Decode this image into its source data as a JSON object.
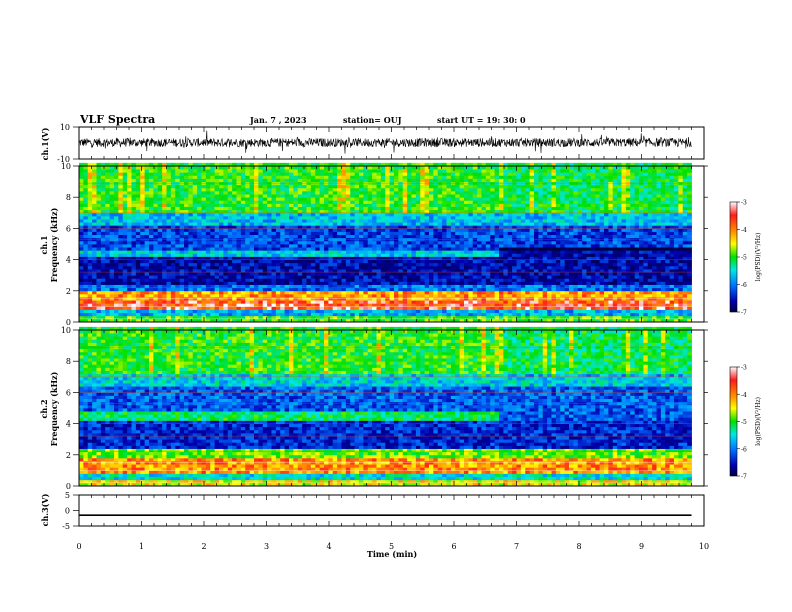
{
  "header": {
    "title": "VLF Spectra",
    "date": "Jan. 7 , 2023",
    "station": "station= OUJ",
    "start": "start UT = 19: 30: 0"
  },
  "colorbar": {
    "label": "log(PSD)(V²/Hz)",
    "ticks": [
      "-3",
      "-4",
      "-5",
      "-6",
      "-7"
    ],
    "stops": [
      "#ffffff",
      "#ff1a1a",
      "#ff9900",
      "#ffff00",
      "#00e000",
      "#00e6e6",
      "#0070ff",
      "#0000b0",
      "#000040"
    ]
  },
  "chart_data": [
    {
      "type": "line",
      "name": "ch1-waveform",
      "ylabel": "ch.1(V)",
      "ylim": [
        -10,
        10
      ],
      "ytick_labels": [
        "10",
        "-10"
      ],
      "xlim": [
        0,
        10
      ],
      "description_values": {
        "mean": 0,
        "typical_amplitude": 3
      }
    },
    {
      "type": "heatmap",
      "name": "ch1-spectrogram",
      "ylabel": "ch.1\nFrequency (kHz)",
      "ylim": [
        0,
        10
      ],
      "xlim": [
        0,
        10
      ],
      "yticks": [
        "0",
        "2",
        "4",
        "6",
        "8",
        "10"
      ],
      "data_end_min": 9.8,
      "bands_khz": [
        {
          "from": 0,
          "to": 0.3,
          "level": -4.5
        },
        {
          "from": 0.3,
          "to": 0.8,
          "level": -5.5
        },
        {
          "from": 0.8,
          "to": 1.3,
          "level": -3.2
        },
        {
          "from": 1.3,
          "to": 1.9,
          "level": -3.6
        },
        {
          "from": 1.9,
          "to": 2.4,
          "level": -5.8
        },
        {
          "from": 2.4,
          "to": 4.1,
          "level": -6.4
        },
        {
          "from": 4.1,
          "to": 4.6,
          "level": -5.3
        },
        {
          "from": 4.6,
          "to": 6.2,
          "level": -6.0
        },
        {
          "from": 6.2,
          "to": 7.0,
          "level": -5.4
        },
        {
          "from": 7.0,
          "to": 10.0,
          "level": -4.6
        }
      ]
    },
    {
      "type": "heatmap",
      "name": "ch2-spectrogram",
      "ylabel": "ch.2\nFrequency (kHz)",
      "ylim": [
        0,
        10
      ],
      "xlim": [
        0,
        10
      ],
      "yticks": [
        "0",
        "2",
        "4",
        "6",
        "8",
        "10"
      ],
      "data_end_min": 9.8,
      "bands_khz": [
        {
          "from": 0,
          "to": 0.4,
          "level": -4.0
        },
        {
          "from": 0.4,
          "to": 0.8,
          "level": -5.2
        },
        {
          "from": 0.8,
          "to": 1.6,
          "level": -3.6
        },
        {
          "from": 1.6,
          "to": 2.2,
          "level": -4.4
        },
        {
          "from": 2.2,
          "to": 4.1,
          "level": -6.2
        },
        {
          "from": 4.1,
          "to": 4.7,
          "level": -4.8
        },
        {
          "from": 4.7,
          "to": 6.4,
          "level": -5.9
        },
        {
          "from": 6.4,
          "to": 7.2,
          "level": -5.3
        },
        {
          "from": 7.2,
          "to": 10.0,
          "level": -4.6
        }
      ]
    },
    {
      "type": "line",
      "name": "ch3-waveform",
      "ylabel": "ch.3(V)",
      "ylim": [
        -5,
        5
      ],
      "ytick_labels": [
        "5",
        "0",
        "-5"
      ],
      "xlim": [
        0,
        10
      ],
      "x": [
        0,
        9.8
      ],
      "y": [
        -1.5,
        -1.5
      ]
    }
  ],
  "xaxis": {
    "label": "Time (min)",
    "ticks": [
      "0",
      "1",
      "2",
      "3",
      "4",
      "5",
      "6",
      "7",
      "8",
      "9",
      "10"
    ]
  }
}
